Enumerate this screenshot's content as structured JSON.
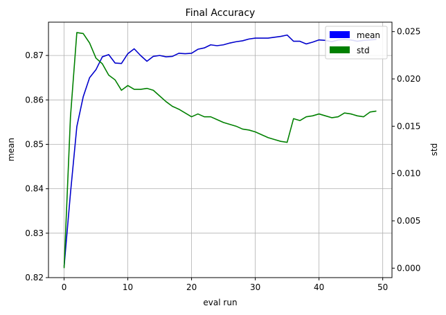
{
  "chart_data": {
    "type": "line",
    "title": "Final Accuracy",
    "xlabel": "eval run",
    "ylabel_left": "mean",
    "ylabel_right": "std",
    "xlim": [
      -2.45,
      51.45
    ],
    "ylim_left": [
      0.82,
      0.8775
    ],
    "ylim_right": [
      -0.001,
      0.026
    ],
    "x_ticks": [
      0,
      10,
      20,
      30,
      40,
      50
    ],
    "y_left_ticks": [
      0.82,
      0.83,
      0.84,
      0.85,
      0.86,
      0.87
    ],
    "y_left_tick_labels": [
      "0.82",
      "0.83",
      "0.84",
      "0.85",
      "0.86",
      "0.87"
    ],
    "y_right_ticks": [
      0.0,
      0.005,
      0.01,
      0.015,
      0.02,
      0.025
    ],
    "y_right_tick_labels": [
      "0.000",
      "0.005",
      "0.010",
      "0.015",
      "0.020",
      "0.025"
    ],
    "grid": true,
    "legend_position": "top-right",
    "x": [
      0,
      1,
      2,
      3,
      4,
      5,
      6,
      7,
      8,
      9,
      10,
      11,
      12,
      13,
      14,
      15,
      16,
      17,
      18,
      19,
      20,
      21,
      22,
      23,
      24,
      25,
      26,
      27,
      28,
      29,
      30,
      31,
      32,
      33,
      34,
      35,
      36,
      37,
      38,
      39,
      40,
      41,
      42,
      43,
      44,
      45,
      46,
      47,
      48,
      49
    ],
    "series": [
      {
        "name": "mean",
        "axis": "left",
        "color": "#0000cc",
        "legend_color": "#0000ff",
        "values": [
          0.8225,
          0.839,
          0.854,
          0.8607,
          0.865,
          0.8668,
          0.8697,
          0.8702,
          0.8683,
          0.8682,
          0.8704,
          0.8715,
          0.87,
          0.8687,
          0.8698,
          0.87,
          0.8697,
          0.8698,
          0.8705,
          0.8704,
          0.8705,
          0.8714,
          0.8717,
          0.8724,
          0.8722,
          0.8724,
          0.8728,
          0.8731,
          0.8733,
          0.8737,
          0.8739,
          0.8739,
          0.8739,
          0.8741,
          0.8743,
          0.8746,
          0.8732,
          0.8732,
          0.8726,
          0.873,
          0.8735,
          0.8734,
          0.8731,
          0.8735,
          0.8736,
          0.8735,
          0.8732,
          0.8734,
          0.8735,
          0.8736
        ]
      },
      {
        "name": "std",
        "axis": "right",
        "color": "#008000",
        "legend_color": "#008000",
        "values": [
          0.0,
          0.016,
          0.0249,
          0.0248,
          0.0238,
          0.0222,
          0.0216,
          0.0204,
          0.0199,
          0.0188,
          0.0193,
          0.0189,
          0.0189,
          0.019,
          0.0188,
          0.0182,
          0.0176,
          0.0171,
          0.0168,
          0.0164,
          0.016,
          0.0163,
          0.016,
          0.016,
          0.0157,
          0.0154,
          0.0152,
          0.015,
          0.0147,
          0.0146,
          0.0144,
          0.0141,
          0.0138,
          0.0136,
          0.0134,
          0.0133,
          0.0158,
          0.0156,
          0.016,
          0.0161,
          0.0163,
          0.0161,
          0.0159,
          0.016,
          0.0164,
          0.0163,
          0.0161,
          0.016,
          0.0165,
          0.0166
        ]
      }
    ]
  }
}
